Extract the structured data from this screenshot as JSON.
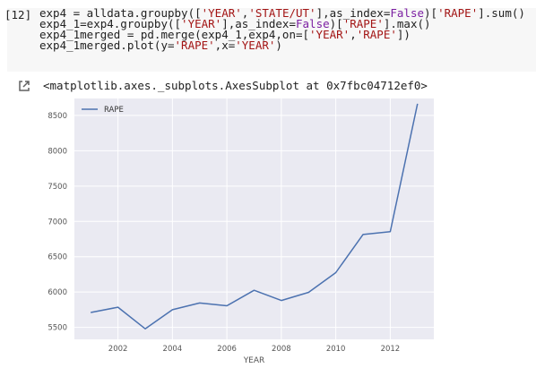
{
  "cell": {
    "prompt": "[12]",
    "code_lines": [
      [
        {
          "t": "exp4 = alldata.groupby(["
        },
        {
          "t": "'YEAR'",
          "c": "s"
        },
        {
          "t": ","
        },
        {
          "t": "'STATE/UT'",
          "c": "s"
        },
        {
          "t": "],as_index="
        },
        {
          "t": "False",
          "c": "k"
        },
        {
          "t": ")["
        },
        {
          "t": "'RAPE'",
          "c": "s"
        },
        {
          "t": "].sum()"
        }
      ],
      [
        {
          "t": "exp4_1=exp4.groupby(["
        },
        {
          "t": "'YEAR'",
          "c": "s"
        },
        {
          "t": "],as_index="
        },
        {
          "t": "False",
          "c": "k"
        },
        {
          "t": ")["
        },
        {
          "t": "'RAPE'",
          "c": "s"
        },
        {
          "t": "].max()"
        }
      ],
      [
        {
          "t": "exp4_1merged = pd.merge(exp4_1,exp4,on=["
        },
        {
          "t": "'YEAR'",
          "c": "s"
        },
        {
          "t": ","
        },
        {
          "t": "'RAPE'",
          "c": "s"
        },
        {
          "t": "])"
        }
      ],
      [
        {
          "t": "exp4_1merged.plot(y="
        },
        {
          "t": "'RAPE'",
          "c": "s"
        },
        {
          "t": ",x="
        },
        {
          "t": "'YEAR'",
          "c": "s"
        },
        {
          "t": ")"
        }
      ]
    ]
  },
  "output": {
    "icon": "output-redirect-icon",
    "text": "<matplotlib.axes._subplots.AxesSubplot at 0x7fbc04712ef0>"
  },
  "chart_data": {
    "type": "line",
    "xlabel": "YEAR",
    "ylabel": "",
    "x": [
      2001,
      2002,
      2003,
      2004,
      2005,
      2006,
      2007,
      2008,
      2009,
      2010,
      2011,
      2012,
      2013
    ],
    "series": [
      {
        "name": "RAPE",
        "values": [
          5710,
          5785,
          5480,
          5750,
          5845,
          5805,
          6025,
          5880,
          5995,
          6275,
          6815,
          6855,
          8665
        ],
        "color": "#4c72b0"
      }
    ],
    "xlim": [
      2000.4,
      2013.6
    ],
    "ylim": [
      5330,
      8740
    ],
    "xticks": [
      2002,
      2004,
      2006,
      2008,
      2010,
      2012
    ],
    "yticks": [
      5500,
      6000,
      6500,
      7000,
      7500,
      8000,
      8500
    ],
    "grid": true,
    "legend": "top-left",
    "background": "#eaeaf2"
  }
}
